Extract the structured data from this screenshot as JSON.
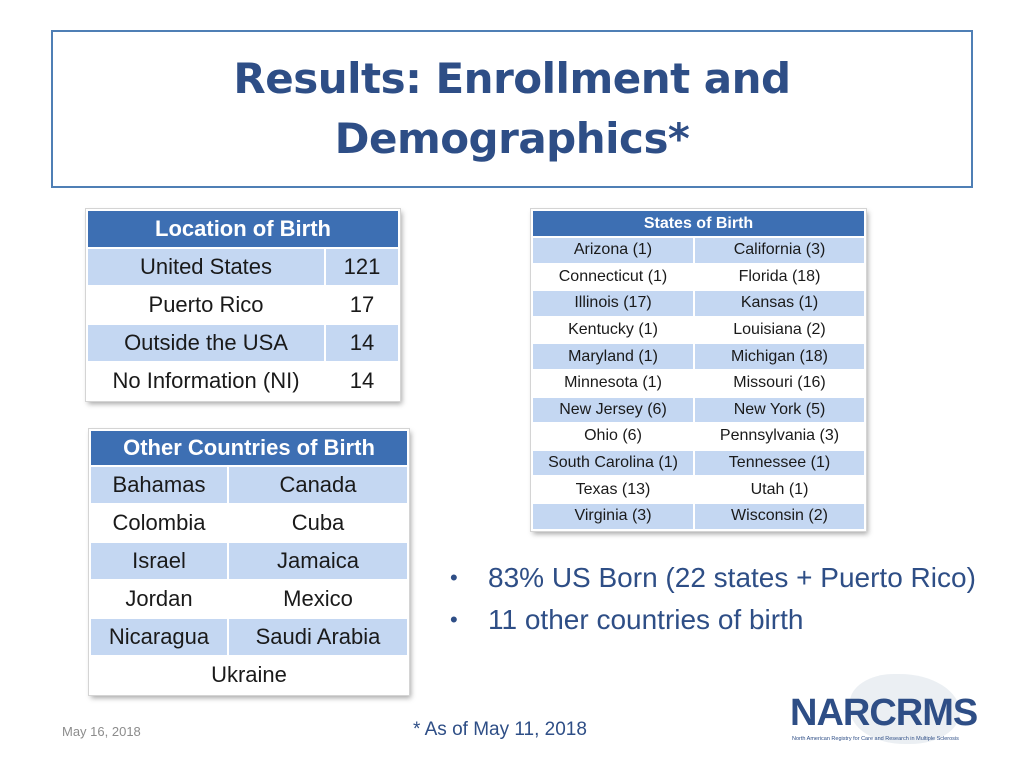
{
  "title": {
    "line1": "Results: Enrollment and",
    "line2": "Demographics*"
  },
  "location_of_birth": {
    "header": "Location of Birth",
    "rows": [
      {
        "label": "United States",
        "value": "121"
      },
      {
        "label": "Puerto Rico",
        "value": "17"
      },
      {
        "label": "Outside the USA",
        "value": "14"
      },
      {
        "label": "No Information (NI)",
        "value": "14"
      }
    ]
  },
  "other_countries": {
    "header": "Other Countries of Birth",
    "rows": [
      [
        "Bahamas",
        "Canada"
      ],
      [
        "Colombia",
        "Cuba"
      ],
      [
        "Israel",
        "Jamaica"
      ],
      [
        "Jordan",
        "Mexico"
      ],
      [
        "Nicaragua",
        "Saudi Arabia"
      ]
    ],
    "last": "Ukraine"
  },
  "states_of_birth": {
    "header": "States of Birth",
    "rows": [
      [
        "Arizona (1)",
        "California (3)"
      ],
      [
        "Connecticut (1)",
        "Florida (18)"
      ],
      [
        "Illinois (17)",
        "Kansas (1)"
      ],
      [
        "Kentucky (1)",
        "Louisiana (2)"
      ],
      [
        "Maryland (1)",
        "Michigan (18)"
      ],
      [
        "Minnesota (1)",
        "Missouri (16)"
      ],
      [
        "New Jersey (6)",
        "New York (5)"
      ],
      [
        "Ohio (6)",
        "Pennsylvania (3)"
      ],
      [
        "South Carolina (1)",
        "Tennessee (1)"
      ],
      [
        "Texas (13)",
        "Utah (1)"
      ],
      [
        "Virginia (3)",
        "Wisconsin (2)"
      ]
    ]
  },
  "bullets": [
    "83% US Born (22 states + Puerto Rico)",
    "11 other countries of birth"
  ],
  "footer": {
    "date": "May 16, 2018",
    "note": "* As of May 11, 2018"
  },
  "logo": {
    "wordmark": "NARCRMS",
    "tagline": "North American Registry for Care and Research in Multiple Sclerosis"
  },
  "colors": {
    "title": "#2e4e86",
    "table_header": "#3d6fb3",
    "table_shade": "#c4d7f2"
  }
}
